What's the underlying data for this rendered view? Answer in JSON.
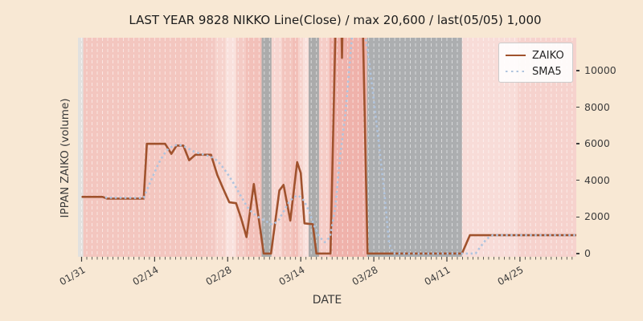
{
  "title": "LAST YEAR 9828 NIKKO Line(Close) / max 20,600 / last(05/05) 1,000",
  "xlabel": "DATE",
  "ylabel": "IPPAN ZAIKO (volume)",
  "legend": {
    "items": [
      {
        "label": "ZAIKO",
        "style": "solid",
        "color": "#a0522d"
      },
      {
        "label": "SMA5",
        "style": "dotted",
        "color": "#b0c4de"
      }
    ]
  },
  "colors": {
    "figure_background": "#f8e8d4",
    "zaiko_line": "#a0522d",
    "sma5_line": "#b0c4de",
    "gridline": "rgba(255,255,255,0.55)",
    "tick_text": "#3d3d3d",
    "weekend_band_gray": "#acaeb0"
  },
  "chart_data": {
    "type": "line",
    "title": "LAST YEAR 9828 NIKKO Line(Close) / max 20,600 / last(05/05) 1,000",
    "xlabel": "DATE",
    "ylabel": "IPPAN ZAIKO (volume)",
    "x_unit": "days since 01/31",
    "xlim": [
      -0.7,
      94.8
    ],
    "ylim": [
      -180,
      11800
    ],
    "grid": "vertical-daily-dashed",
    "legend_position": "upper right",
    "max_annotation": 20600,
    "last_annotation": {
      "date": "05/05",
      "value": 1000
    },
    "xticks": [
      {
        "pos": 0,
        "label": "01/31"
      },
      {
        "pos": 14,
        "label": "02/14"
      },
      {
        "pos": 28,
        "label": "02/28"
      },
      {
        "pos": 42,
        "label": "03/14"
      },
      {
        "pos": 56,
        "label": "03/28"
      },
      {
        "pos": 70,
        "label": "04/11"
      },
      {
        "pos": 84,
        "label": "04/25"
      }
    ],
    "yticks": [
      {
        "value": 0,
        "label": "0"
      },
      {
        "value": 2000,
        "label": "2000"
      },
      {
        "value": 4000,
        "label": "4000"
      },
      {
        "value": 6000,
        "label": "6000"
      },
      {
        "value": 8000,
        "label": "8000"
      },
      {
        "value": 10000,
        "label": "10000"
      }
    ],
    "minor_xticks_every": 1,
    "background_bands": [
      {
        "from": -0.7,
        "to": 0.31,
        "color": "#e2e1df"
      },
      {
        "from": 0.31,
        "to": 23.6,
        "color": "#f3c6bf"
      },
      {
        "from": 23.6,
        "to": 25.6,
        "color": "#f3c8c2"
      },
      {
        "from": 25.6,
        "to": 27.6,
        "color": "#f6d3cd"
      },
      {
        "from": 27.6,
        "to": 29.6,
        "color": "#f9e1dd"
      },
      {
        "from": 29.6,
        "to": 31.5,
        "color": "#f4cbc5"
      },
      {
        "from": 31.5,
        "to": 34.5,
        "color": "#f2c0b9"
      },
      {
        "from": 34.5,
        "to": 36.4,
        "color": "#ababab"
      },
      {
        "from": 36.4,
        "to": 38.4,
        "color": "#f7d6d1"
      },
      {
        "from": 38.4,
        "to": 40.4,
        "color": "#f3c5be"
      },
      {
        "from": 40.4,
        "to": 41.5,
        "color": "#f2beb7"
      },
      {
        "from": 41.5,
        "to": 42.4,
        "color": "#f6d2cc"
      },
      {
        "from": 42.4,
        "to": 43.5,
        "color": "#f9e0dc"
      },
      {
        "from": 43.5,
        "to": 45.5,
        "color": "#ababab"
      },
      {
        "from": 45.5,
        "to": 47.5,
        "color": "#f5cdc7"
      },
      {
        "from": 47.5,
        "to": 54.7,
        "color": "#efb2ab"
      },
      {
        "from": 54.7,
        "to": 72.9,
        "color": "#acaeb0"
      },
      {
        "from": 72.9,
        "to": 83.6,
        "color": "#f8dcd8"
      },
      {
        "from": 83.6,
        "to": 94.8,
        "color": "#f6d2cd"
      }
    ],
    "series": [
      {
        "name": "ZAIKO",
        "color": "#a0522d",
        "style": "solid",
        "points": [
          [
            0,
            3100
          ],
          [
            4,
            3100
          ],
          [
            4.9,
            3000
          ],
          [
            11.9,
            3000
          ],
          [
            12.5,
            6000
          ],
          [
            16,
            6000
          ],
          [
            17.2,
            5450
          ],
          [
            18.2,
            5900
          ],
          [
            19.5,
            5900
          ],
          [
            20.6,
            5100
          ],
          [
            21.8,
            5400
          ],
          [
            24.8,
            5400
          ],
          [
            26,
            4300
          ],
          [
            27.2,
            3500
          ],
          [
            28.3,
            2800
          ],
          [
            29.6,
            2750
          ],
          [
            30.6,
            1900
          ],
          [
            31.6,
            900
          ],
          [
            33,
            3800
          ],
          [
            34.9,
            0
          ],
          [
            36.3,
            0
          ],
          [
            37.9,
            3450
          ],
          [
            38.7,
            3750
          ],
          [
            40,
            1800
          ],
          [
            41.3,
            5000
          ],
          [
            42,
            4400
          ],
          [
            42.7,
            1650
          ],
          [
            44.3,
            1600
          ],
          [
            45,
            0
          ],
          [
            47.7,
            0
          ],
          [
            49.3,
            20600
          ],
          [
            49.9,
            10700
          ],
          [
            50.5,
            20600
          ],
          [
            53.3,
            20600
          ],
          [
            54.8,
            0
          ],
          [
            72.9,
            0
          ],
          [
            74.4,
            1000
          ],
          [
            94.8,
            1000
          ]
        ]
      },
      {
        "name": "SMA5",
        "color": "#b0c4de",
        "style": "dotted",
        "points": [
          [
            4.5,
            3060
          ],
          [
            11.9,
            3040
          ],
          [
            12.7,
            3600
          ],
          [
            13.7,
            4250
          ],
          [
            14.7,
            4900
          ],
          [
            15.7,
            5400
          ],
          [
            16.7,
            5750
          ],
          [
            17.7,
            5900
          ],
          [
            18.7,
            5950
          ],
          [
            19.7,
            5850
          ],
          [
            20.7,
            5700
          ],
          [
            21.7,
            5550
          ],
          [
            22.9,
            5450
          ],
          [
            24.1,
            5350
          ],
          [
            25.1,
            5250
          ],
          [
            26.1,
            5050
          ],
          [
            27.1,
            4700
          ],
          [
            28.1,
            4300
          ],
          [
            29.1,
            3850
          ],
          [
            30.1,
            3350
          ],
          [
            31.1,
            2850
          ],
          [
            32.1,
            2400
          ],
          [
            33.1,
            2150
          ],
          [
            34.1,
            1950
          ],
          [
            35.1,
            1800
          ],
          [
            36.6,
            1570
          ],
          [
            37.7,
            1800
          ],
          [
            38.7,
            2300
          ],
          [
            39.7,
            2800
          ],
          [
            40.7,
            3100
          ],
          [
            41.6,
            3170
          ],
          [
            42.6,
            2900
          ],
          [
            43.6,
            2300
          ],
          [
            44.6,
            1500
          ],
          [
            45.6,
            900
          ],
          [
            46.6,
            620
          ],
          [
            47.6,
            900
          ],
          [
            48.6,
            2500
          ],
          [
            49.6,
            5500
          ],
          [
            50.5,
            7500
          ],
          [
            51.2,
            9800
          ],
          [
            52,
            12500
          ],
          [
            53.3,
            13500
          ],
          [
            54.6,
            11500
          ],
          [
            55.1,
            10500
          ],
          [
            56.1,
            8100
          ],
          [
            57.1,
            5700
          ],
          [
            58.1,
            3100
          ],
          [
            58.9,
            600
          ],
          [
            59.7,
            0
          ],
          [
            75.5,
            0
          ],
          [
            76.4,
            350
          ],
          [
            77.6,
            800
          ],
          [
            78.8,
            1000
          ],
          [
            94.8,
            1000
          ]
        ]
      }
    ]
  }
}
